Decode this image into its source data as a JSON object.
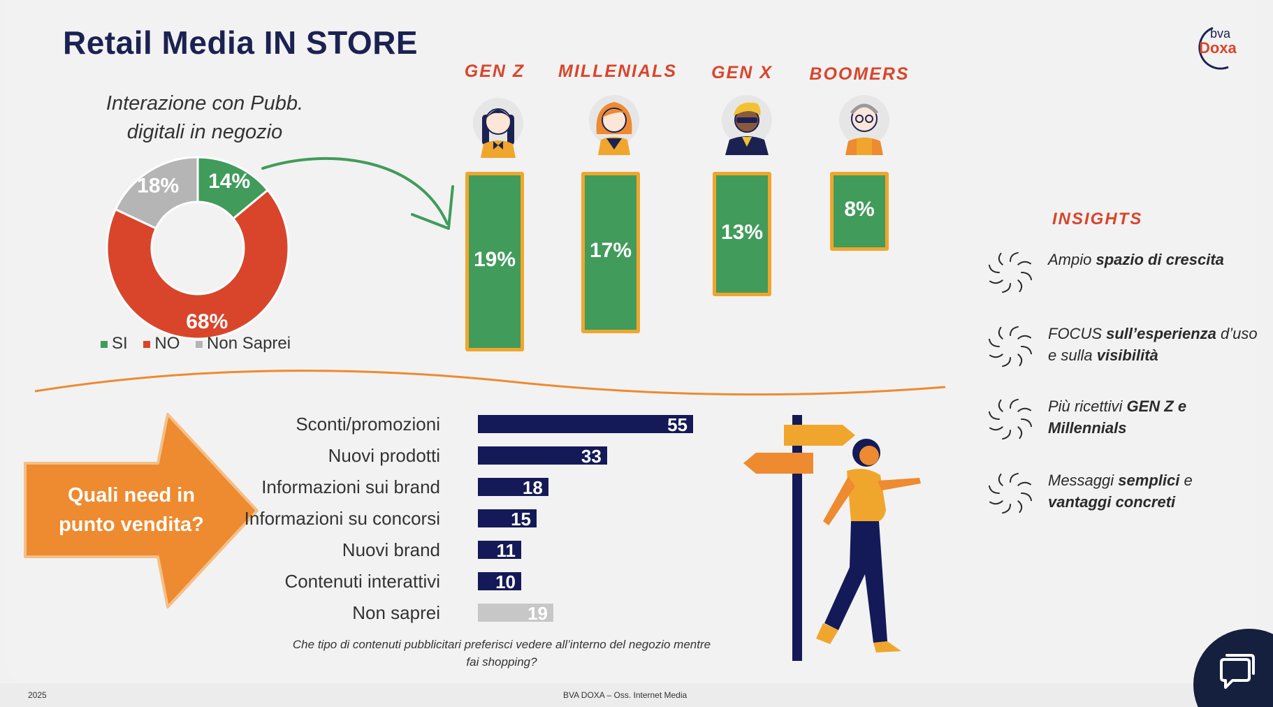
{
  "slide": {
    "title": "Retail Media IN STORE",
    "logo_top": "bva",
    "logo_bottom": "Doxa",
    "footer_year": "2025",
    "footer_source": "BVA DOXA – Oss. Internet Media"
  },
  "colors": {
    "green": "#419b5b",
    "red": "#d9452b",
    "grey": "#b5b5b5",
    "navy": "#141a57",
    "orange": "#ee8a2f",
    "gold": "#f0a62c"
  },
  "chart_data": [
    {
      "type": "pie",
      "title": "Interazione con Pubb. digitali in negozio",
      "slices": [
        {
          "label": "SI",
          "value": 14,
          "display": "14%",
          "color": "#419b5b"
        },
        {
          "label": "NO",
          "value": 68,
          "display": "68%",
          "color": "#d9452b"
        },
        {
          "label": "Non Saprei",
          "value": 18,
          "display": "18%",
          "color": "#b5b5b5"
        }
      ],
      "legend_position": "bottom"
    },
    {
      "type": "bar",
      "categories": [
        "GEN Z",
        "MILLENIALS",
        "GEN X",
        "BOOMERS"
      ],
      "values": [
        19,
        17,
        13,
        8
      ],
      "labels": [
        "19%",
        "17%",
        "13%",
        "8%"
      ]
    },
    {
      "type": "bar",
      "orientation": "horizontal",
      "categories": [
        "Sconti/promozioni",
        "Nuovi prodotti",
        "Informazioni sui brand",
        "Informazioni su concorsi",
        "Nuovi brand",
        "Contenuti interattivi",
        "Non saprei"
      ],
      "values": [
        55,
        33,
        18,
        15,
        11,
        10,
        19
      ],
      "labels": [
        "55",
        "33",
        "18",
        "15",
        "11",
        "10",
        "19"
      ],
      "colors": [
        "#141a57",
        "#141a57",
        "#141a57",
        "#141a57",
        "#141a57",
        "#141a57",
        "#c7c7c7"
      ],
      "xlim": [
        0,
        55
      ]
    }
  ],
  "need": {
    "line1": "Quali need in",
    "line2": "punto vendita?"
  },
  "question": "Che tipo di contenuti pubblicitari preferisci vedere all’interno del negozio mentre fai shopping?",
  "insights": {
    "heading": "INSIGHTS",
    "items": [
      {
        "parts": [
          {
            "t": "Ampio ",
            "b": false
          },
          {
            "t": "spazio di crescita",
            "b": true
          }
        ]
      },
      {
        "parts": [
          {
            "t": "FOCUS ",
            "b": false
          },
          {
            "t": "sull’esperienza",
            "b": true
          },
          {
            "t": " d’uso e sulla ",
            "b": false
          },
          {
            "t": "visibilità",
            "b": true
          }
        ]
      },
      {
        "parts": [
          {
            "t": "Più ricettivi ",
            "b": false
          },
          {
            "t": "GEN Z e Millennials",
            "b": true
          }
        ]
      },
      {
        "parts": [
          {
            "t": "Messaggi ",
            "b": false
          },
          {
            "t": "semplici",
            "b": true
          },
          {
            "t": " e ",
            "b": false
          },
          {
            "t": "vantaggi concreti",
            "b": true
          }
        ]
      }
    ]
  },
  "icons": {
    "chat": "chat-bubble-icon",
    "insight": "sparkle-burst-icon",
    "arrow": "curved-arrow-icon",
    "person": "walking-woman-illustration",
    "signpost": "signpost-illustration"
  }
}
